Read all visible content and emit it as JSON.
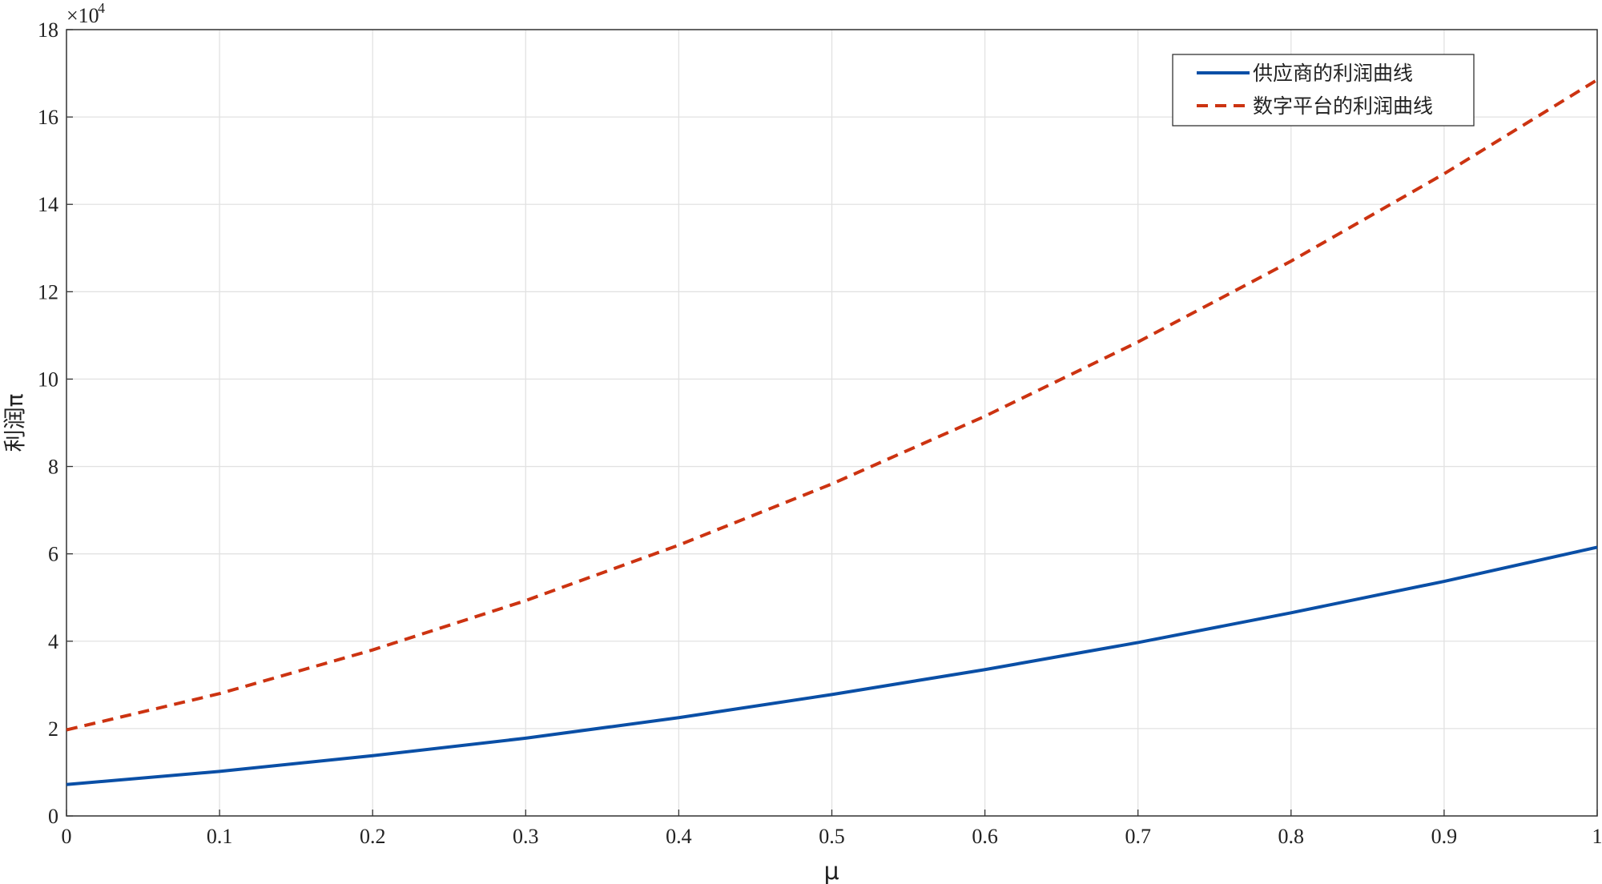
{
  "chart_data": {
    "type": "line",
    "y_label": "利润π",
    "x_label": "μ",
    "y_scale_base": "×10",
    "y_scale_exponent": "4",
    "x": [
      0,
      0.1,
      0.2,
      0.3,
      0.4,
      0.5,
      0.6,
      0.7,
      0.8,
      0.9,
      1
    ],
    "series": [
      {
        "name": "供应商的利润曲线",
        "color": "#0a4fa6",
        "dash": "solid",
        "values": [
          0.72,
          1.02,
          1.38,
          1.78,
          2.25,
          2.78,
          3.35,
          3.97,
          4.65,
          5.37,
          6.15
        ]
      },
      {
        "name": "数字平台的利润曲线",
        "color": "#cc3311",
        "dash": "dashed",
        "values": [
          1.97,
          2.8,
          3.8,
          4.93,
          6.2,
          7.6,
          9.15,
          10.85,
          12.7,
          14.7,
          16.85
        ]
      }
    ],
    "xlim": [
      0,
      1
    ],
    "xticks": [
      0,
      0.1,
      0.2,
      0.3,
      0.4,
      0.5,
      0.6,
      0.7,
      0.8,
      0.9,
      1
    ],
    "ylim": [
      0,
      18
    ],
    "yticks": [
      0,
      2,
      4,
      6,
      8,
      10,
      12,
      14,
      16,
      18
    ],
    "grid": true,
    "legend": "northeast"
  }
}
